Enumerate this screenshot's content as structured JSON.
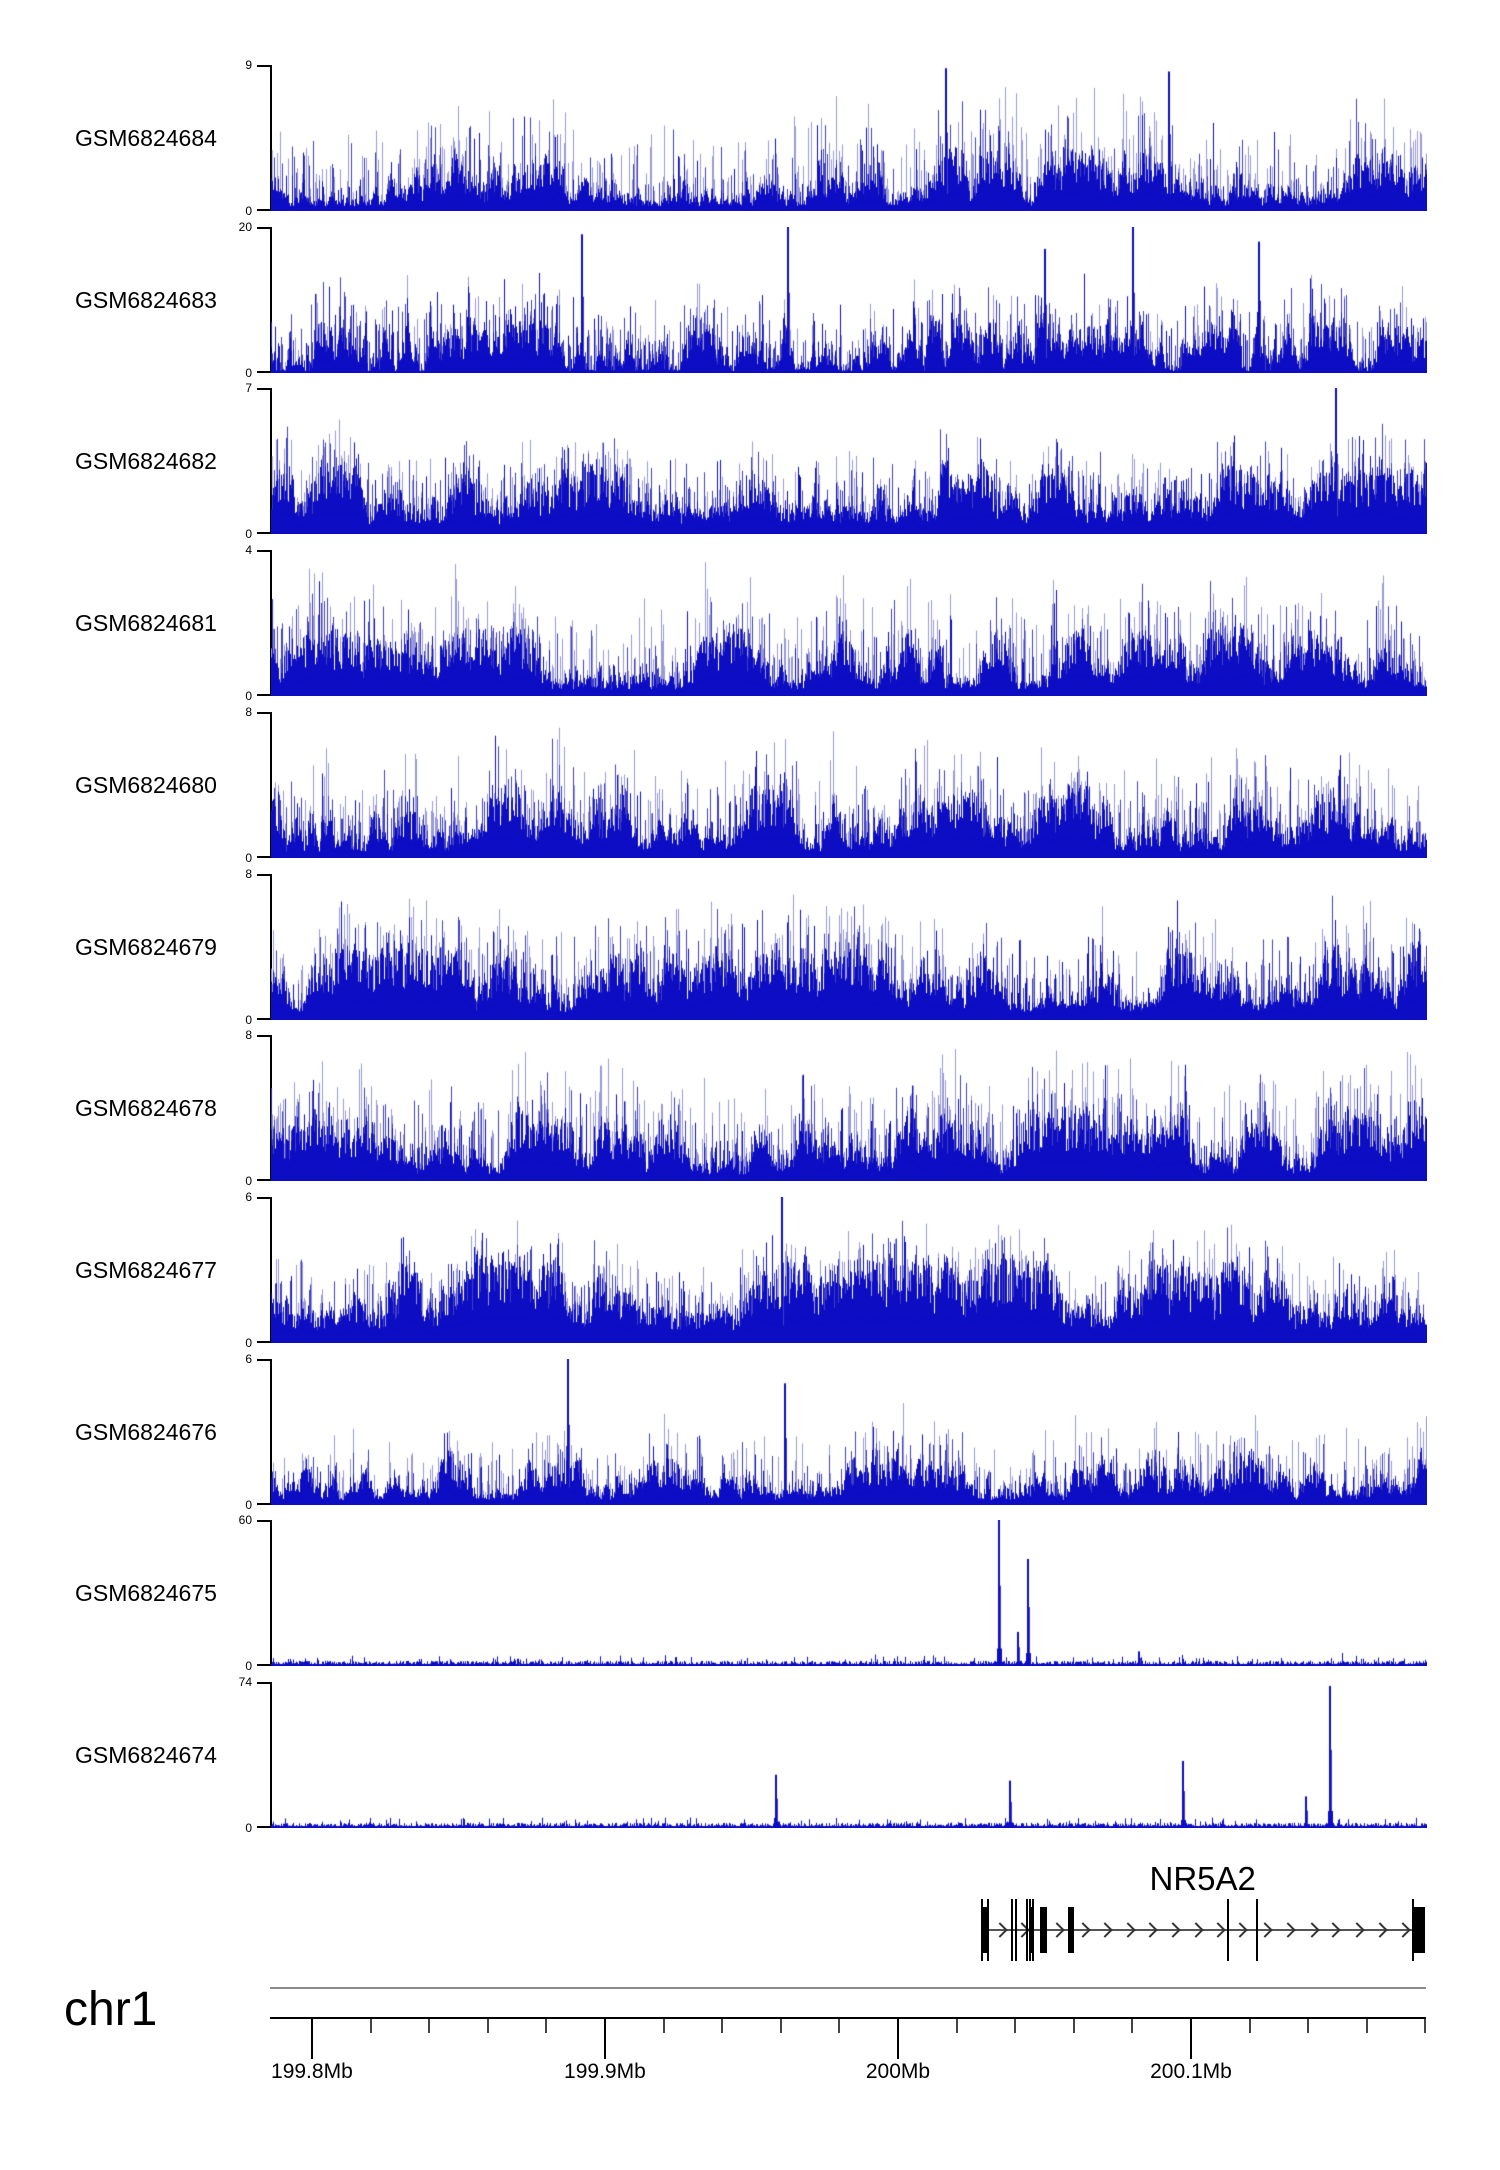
{
  "figure": {
    "background": "#ffffff",
    "chromosome_label": "chr1",
    "gene_track": {
      "gene_name": "NR5A2",
      "label_center_mb": 200.104,
      "strand": "right",
      "line_span_mb": [
        200.0287,
        200.1799
      ],
      "exons_thick_mb": [
        [
          200.029,
          0.0019
        ],
        [
          200.0447,
          0.0015
        ],
        [
          200.0484,
          0.0025
        ],
        [
          200.0579,
          0.0022
        ],
        [
          200.1758,
          0.0041
        ]
      ],
      "boundaries_thin_mb": [
        200.0287,
        200.0307,
        200.0389,
        200.0403,
        200.044,
        200.045,
        200.0461,
        200.1126,
        200.1225,
        200.1758
      ],
      "arrows_mb": [
        200.0348,
        200.0423,
        200.0543,
        200.0631,
        200.0706,
        200.0785,
        200.086,
        200.0938,
        200.1017,
        200.1092,
        200.1167,
        200.1253,
        200.1331,
        200.1413,
        200.1485,
        200.1567,
        200.1645,
        200.1724
      ]
    },
    "ruler": {
      "xlim_mb": [
        199.7857,
        200.1802
      ],
      "major_ticks_mb": [
        199.8,
        199.9,
        200.0,
        200.1
      ],
      "major_tick_labels": [
        "199.8Mb",
        "199.9Mb",
        "200Mb",
        "200.1Mb"
      ],
      "minor_tick_step_mb": 0.02
    },
    "colors": {
      "coverage_dark": "#0d0dc4",
      "coverage_mid": "#4040c0",
      "coverage_light": "#9a9ad8",
      "axis_black": "#000000",
      "ruler_gray": "#8a8a8a"
    }
  },
  "chart_data": {
    "type": "area",
    "subtype": "genome-coverage-tracks",
    "x_axis": {
      "chromosome": "chr1",
      "xlim_mb": [
        199.7857,
        200.1802
      ],
      "units": "Mb"
    },
    "y_zero_label": "0",
    "tracks": [
      {
        "name": "GSM6824684",
        "ymax": "9",
        "ymax_value": 9,
        "profile": "dense",
        "signal": {
          "base_start": 0.22,
          "base_min": 0.06,
          "base_max": 0.34,
          "walk": 0.1,
          "light_prob": 0.45,
          "light_amp": 0.6,
          "mid_prob": 0.3,
          "spike_amp": 0.5,
          "tall_prob": 0.12,
          "seed": 11
        },
        "notable_peaks": [
          {
            "mb": 200.016,
            "value": 8.8
          },
          {
            "mb": 200.092,
            "value": 8.6
          }
        ]
      },
      {
        "name": "GSM6824683",
        "ymax": "20",
        "ymax_value": 20,
        "profile": "dense",
        "signal": {
          "base_start": 0.15,
          "base_min": 0.02,
          "base_max": 0.3,
          "walk": 0.15,
          "light_prob": 0.3,
          "light_amp": 0.45,
          "mid_prob": 0.5,
          "spike_amp": 0.45,
          "tall_prob": 0.22,
          "seed": 22
        },
        "notable_peaks": [
          {
            "mb": 199.892,
            "value": 19
          },
          {
            "mb": 199.962,
            "value": 20
          },
          {
            "mb": 200.05,
            "value": 17
          },
          {
            "mb": 200.08,
            "value": 20
          },
          {
            "mb": 200.123,
            "value": 18
          }
        ]
      },
      {
        "name": "GSM6824682",
        "ymax": "7",
        "ymax_value": 7,
        "profile": "dense",
        "signal": {
          "base_start": 0.3,
          "base_min": 0.12,
          "base_max": 0.4,
          "walk": 0.1,
          "light_prob": 0.4,
          "light_amp": 0.42,
          "mid_prob": 0.35,
          "spike_amp": 0.4,
          "tall_prob": 0.14,
          "seed": 33
        },
        "notable_peaks": [
          {
            "mb": 200.149,
            "value": 7
          }
        ]
      },
      {
        "name": "GSM6824681",
        "ymax": "4",
        "ymax_value": 4,
        "profile": "dense",
        "signal": {
          "base_start": 0.25,
          "base_min": 0.08,
          "base_max": 0.38,
          "walk": 0.11,
          "light_prob": 0.45,
          "light_amp": 0.58,
          "mid_prob": 0.3,
          "spike_amp": 0.48,
          "tall_prob": 0.14,
          "seed": 44
        },
        "notable_peaks": []
      },
      {
        "name": "GSM6824680",
        "ymax": "8",
        "ymax_value": 8,
        "profile": "dense",
        "signal": {
          "base_start": 0.28,
          "base_min": 0.08,
          "base_max": 0.4,
          "walk": 0.11,
          "light_prob": 0.45,
          "light_amp": 0.58,
          "mid_prob": 0.3,
          "spike_amp": 0.48,
          "tall_prob": 0.14,
          "seed": 55
        },
        "notable_peaks": []
      },
      {
        "name": "GSM6824679",
        "ymax": "8",
        "ymax_value": 8,
        "profile": "dense",
        "signal": {
          "base_start": 0.3,
          "base_min": 0.1,
          "base_max": 0.42,
          "walk": 0.11,
          "light_prob": 0.45,
          "light_amp": 0.55,
          "mid_prob": 0.3,
          "spike_amp": 0.48,
          "tall_prob": 0.14,
          "seed": 66
        },
        "notable_peaks": []
      },
      {
        "name": "GSM6824678",
        "ymax": "8",
        "ymax_value": 8,
        "profile": "dense",
        "signal": {
          "base_start": 0.28,
          "base_min": 0.08,
          "base_max": 0.4,
          "walk": 0.11,
          "light_prob": 0.5,
          "light_amp": 0.6,
          "mid_prob": 0.3,
          "spike_amp": 0.5,
          "tall_prob": 0.14,
          "seed": 77
        },
        "notable_peaks": []
      },
      {
        "name": "GSM6824677",
        "ymax": "6",
        "ymax_value": 6,
        "profile": "dense",
        "signal": {
          "base_start": 0.38,
          "base_min": 0.16,
          "base_max": 0.48,
          "walk": 0.1,
          "light_prob": 0.4,
          "light_amp": 0.42,
          "mid_prob": 0.3,
          "spike_amp": 0.38,
          "tall_prob": 0.12,
          "seed": 88
        },
        "notable_peaks": [
          {
            "mb": 199.96,
            "value": 6
          }
        ]
      },
      {
        "name": "GSM6824676",
        "ymax": "6",
        "ymax_value": 6,
        "profile": "dense",
        "signal": {
          "base_start": 0.2,
          "base_min": 0.06,
          "base_max": 0.3,
          "walk": 0.09,
          "light_prob": 0.35,
          "light_amp": 0.48,
          "mid_prob": 0.25,
          "spike_amp": 0.35,
          "tall_prob": 0.08,
          "seed": 99
        },
        "notable_peaks": [
          {
            "mb": 199.887,
            "value": 6
          },
          {
            "mb": 199.961,
            "value": 5
          }
        ]
      },
      {
        "name": "GSM6824675",
        "ymax": "60",
        "ymax_value": 60,
        "profile": "sparse",
        "signal": {
          "noise_frac": 0.03,
          "seed": 110
        },
        "notable_peaks": [
          {
            "mb": 199.87,
            "value": 3
          },
          {
            "mb": 200.034,
            "value": 60
          },
          {
            "mb": 200.0405,
            "value": 14
          },
          {
            "mb": 200.044,
            "value": 44
          },
          {
            "mb": 200.082,
            "value": 6
          }
        ]
      },
      {
        "name": "GSM6824674",
        "ymax": "74",
        "ymax_value": 74,
        "profile": "sparse",
        "signal": {
          "noise_frac": 0.03,
          "seed": 121
        },
        "notable_peaks": [
          {
            "mb": 199.958,
            "value": 27
          },
          {
            "mb": 200.038,
            "value": 24
          },
          {
            "mb": 200.097,
            "value": 34
          },
          {
            "mb": 200.139,
            "value": 16
          },
          {
            "mb": 200.147,
            "value": 72
          }
        ]
      }
    ]
  }
}
